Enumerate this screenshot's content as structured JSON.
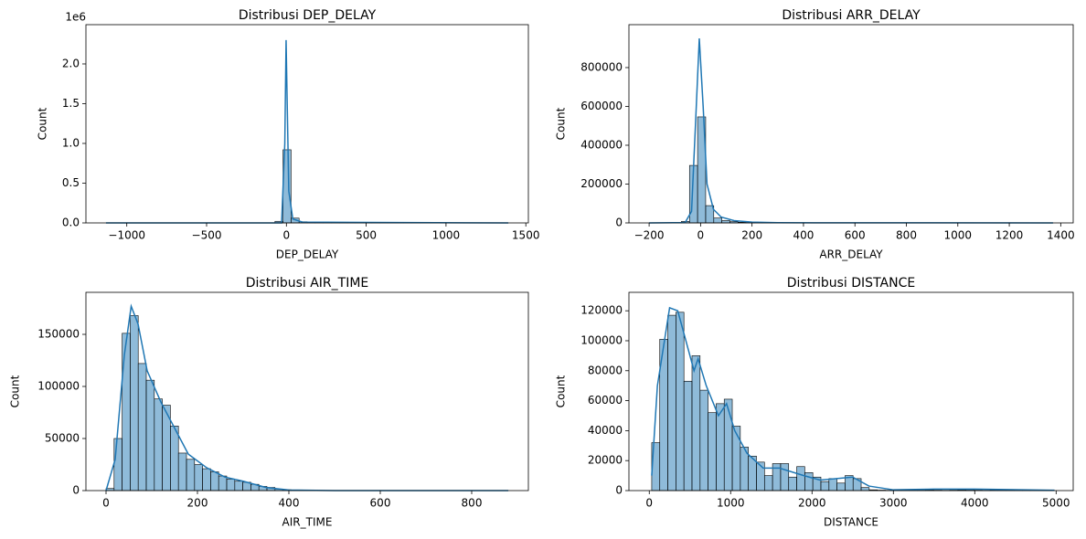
{
  "chart_data": [
    {
      "type": "histogram",
      "title": "Distribusi DEP_DELAY",
      "x_label": "DEP_DELAY",
      "y_label": "Count",
      "y_offset_label": "1e6",
      "color": "#1f77b4",
      "bins": [
        -1130,
        -1079.6,
        -1029.2,
        -978.8,
        -928.4,
        -878,
        -827.6,
        -777.2,
        -726.8,
        -676.4,
        -626,
        -575.6,
        -525.2,
        -474.8,
        -424.4,
        -374,
        -323.6,
        -273.2,
        -222.8,
        -172.4,
        -122,
        -71.6,
        -21.2,
        29.2,
        79.6,
        130,
        180.4,
        230.8,
        281.2,
        331.6,
        382,
        432.4,
        482.8,
        533.2,
        583.6,
        634,
        684.4,
        734.8,
        785.2,
        835.6,
        886,
        936.4,
        986.8,
        1037.2,
        1087.6,
        1138,
        1188.4,
        1238.8,
        1289.2,
        1339.6,
        1390
      ],
      "counts": [
        100,
        0,
        0,
        0,
        0,
        0,
        0,
        0,
        0,
        0,
        0,
        0,
        0,
        0,
        0,
        0,
        0,
        0,
        100,
        300,
        1500,
        20000,
        920000,
        60000,
        15000,
        6000,
        3000,
        1500,
        800,
        500,
        300,
        200,
        150,
        100,
        80,
        60,
        40,
        30,
        20,
        20,
        10,
        10,
        10,
        5,
        5,
        5,
        5,
        3,
        2,
        1
      ],
      "kde": {
        "x": [
          -1130,
          -100,
          -30,
          -10,
          -2,
          5,
          15,
          40,
          100,
          1390
        ],
        "values": [
          0,
          0,
          0,
          1000000,
          2300000,
          1500000,
          400000,
          50000,
          10000,
          0
        ]
      },
      "xlim": [
        -1256,
        1516
      ],
      "ylim": [
        0,
        2494000
      ],
      "xticks": [
        {
          "value": -1000,
          "label": "−1000"
        },
        {
          "value": -500,
          "label": "−500"
        },
        0,
        500,
        1000,
        1500
      ],
      "yticks": [
        {
          "value": 0,
          "label": "0.0"
        },
        {
          "value": 500000,
          "label": "0.5"
        },
        {
          "value": 1000000,
          "label": "1.0"
        },
        {
          "value": 1500000,
          "label": "1.5"
        },
        {
          "value": 2000000,
          "label": "2.0"
        }
      ]
    },
    {
      "type": "histogram",
      "title": "Distribusi ARR_DELAY",
      "x_label": "ARR_DELAY",
      "y_label": "Count",
      "color": "#1f77b4",
      "bins": [
        -200,
        -168.6,
        -137.2,
        -105.8,
        -74.4,
        -43,
        -11.6,
        19.8,
        51.2,
        82.6,
        114,
        145.4,
        176.8,
        208.2,
        239.6,
        271,
        302.4,
        333.8,
        365.2,
        396.6,
        428,
        459.4,
        490.8,
        522.2,
        553.6,
        585,
        616.4,
        647.8,
        679.2,
        710.6,
        742,
        773.4,
        804.8,
        836.2,
        867.6,
        899,
        930.4,
        961.8,
        993.2,
        1024.6,
        1056,
        1087.4,
        1118.8,
        1150.2,
        1181.6,
        1213,
        1244.4,
        1275.8,
        1307.2,
        1338.6,
        1370
      ],
      "counts": [
        10,
        50,
        300,
        1500,
        8000,
        296000,
        546000,
        89000,
        25000,
        12000,
        6000,
        3500,
        2000,
        1300,
        900,
        600,
        400,
        300,
        200,
        150,
        100,
        80,
        60,
        50,
        40,
        30,
        25,
        20,
        15,
        12,
        10,
        8,
        6,
        5,
        4,
        3,
        3,
        2,
        2,
        2,
        1,
        1,
        1,
        1,
        1,
        1,
        1,
        1,
        1,
        1
      ],
      "kde": {
        "x": [
          -200,
          -60,
          -35,
          -20,
          -5,
          10,
          25,
          50,
          80,
          130,
          200,
          300,
          1370
        ],
        "values": [
          0,
          2000,
          60000,
          500000,
          950000,
          600000,
          200000,
          70000,
          30000,
          12000,
          4000,
          1000,
          0
        ]
      },
      "xlim": [
        -278.5,
        1448.5
      ],
      "ylim": [
        0,
        1021000
      ],
      "xticks": [
        {
          "value": -200,
          "label": "−200"
        },
        0,
        200,
        400,
        600,
        800,
        1000,
        1200,
        1400
      ],
      "yticks": [
        0,
        200000,
        400000,
        600000,
        800000
      ]
    },
    {
      "type": "histogram",
      "title": "Distribusi AIR_TIME",
      "x_label": "AIR_TIME",
      "y_label": "Count",
      "color": "#1f77b4",
      "bins": [
        0,
        17.6,
        35.2,
        52.8,
        70.4,
        88,
        105.6,
        123.2,
        140.8,
        158.4,
        176,
        193.6,
        211.2,
        228.8,
        246.4,
        264,
        281.6,
        299.2,
        316.8,
        334.4,
        352,
        369.6,
        387.2,
        404.8,
        422.4,
        440,
        457.6,
        475.2,
        492.8,
        510.4,
        528,
        545.6,
        563.2,
        580.8,
        598.4,
        616,
        633.6,
        651.2,
        668.8,
        686.4,
        704,
        721.6,
        739.2,
        756.8,
        774.4,
        792,
        809.6,
        827.2,
        844.8,
        862.4,
        880
      ],
      "counts": [
        2000,
        50000,
        151000,
        168000,
        122000,
        106000,
        88000,
        82000,
        62000,
        36000,
        30000,
        25000,
        21000,
        18000,
        14000,
        11000,
        9000,
        8000,
        6000,
        4000,
        3000,
        1500,
        800,
        400,
        200,
        100,
        60,
        40,
        30,
        20,
        15,
        10,
        8,
        6,
        5,
        4,
        3,
        3,
        2,
        2,
        2,
        1,
        1,
        1,
        1,
        1,
        1,
        1,
        1,
        1
      ],
      "kde": {
        "x": [
          0,
          20,
          40,
          55,
          70,
          90,
          120,
          150,
          180,
          220,
          260,
          300,
          350,
          400,
          500,
          880
        ],
        "values": [
          0,
          30000,
          130000,
          177000,
          160000,
          115000,
          85000,
          60000,
          35000,
          22000,
          13000,
          9000,
          3000,
          500,
          0,
          0
        ]
      },
      "xlim": [
        -44,
        924
      ],
      "ylim": [
        0,
        190350
      ],
      "xticks": [
        0,
        200,
        400,
        600,
        800
      ],
      "yticks": [
        0,
        50000,
        100000,
        150000
      ]
    },
    {
      "type": "histogram",
      "title": "Distribusi DISTANCE",
      "x_label": "DISTANCE",
      "y_label": "Count",
      "color": "#1f77b4",
      "bins": [
        30,
        129,
        228,
        327,
        426,
        525,
        624,
        723,
        822,
        921,
        1020,
        1119,
        1218,
        1317,
        1416,
        1515,
        1614,
        1713,
        1812,
        1911,
        2010,
        2109,
        2208,
        2307,
        2406,
        2505,
        2604,
        2703,
        2802,
        2901,
        3000,
        3099,
        3198,
        3297,
        3396,
        3495,
        3594,
        3693,
        3792,
        3891,
        3990,
        4089,
        4188,
        4287,
        4386,
        4485,
        4584,
        4683,
        4782,
        4881,
        4980
      ],
      "counts": [
        32000,
        101000,
        117000,
        119000,
        73000,
        90000,
        67000,
        52000,
        58000,
        61000,
        43000,
        29000,
        23000,
        19000,
        10000,
        18000,
        18000,
        9000,
        16000,
        12000,
        9000,
        6000,
        8000,
        5000,
        10000,
        8000,
        2000,
        500,
        300,
        200,
        100,
        100,
        200,
        300,
        500,
        300,
        200,
        300,
        500,
        600,
        300,
        200,
        400,
        200,
        300,
        500,
        200,
        100,
        100,
        100
      ],
      "kde": {
        "x": [
          30,
          100,
          250,
          350,
          450,
          550,
          600,
          700,
          850,
          950,
          1050,
          1200,
          1400,
          1600,
          1900,
          2100,
          2500,
          2700,
          3000,
          3500,
          4000,
          4980
        ],
        "values": [
          10000,
          70000,
          122000,
          120000,
          100000,
          80000,
          88000,
          70000,
          50000,
          58000,
          40000,
          25000,
          15000,
          15000,
          10000,
          7000,
          9000,
          3000,
          500,
          1000,
          1000,
          200
        ]
      },
      "xlim": [
        -250,
        5210
      ],
      "ylim": [
        0,
        132300
      ],
      "xticks": [
        0,
        1000,
        2000,
        3000,
        4000,
        5000
      ],
      "yticks": [
        0,
        20000,
        40000,
        60000,
        80000,
        100000,
        120000
      ]
    }
  ]
}
